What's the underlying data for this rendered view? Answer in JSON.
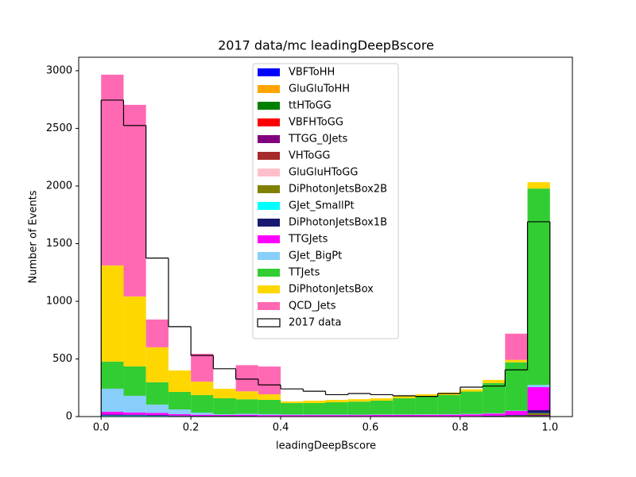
{
  "chart_data": {
    "type": "histogram",
    "title": "2017 data/mc leadingDeepBscore",
    "xlabel": "leadingDeepBscore",
    "ylabel": "Number of Events",
    "bins": [
      0,
      0.05,
      0.1,
      0.15,
      0.2,
      0.25,
      0.3,
      0.35,
      0.4,
      0.45,
      0.5,
      0.55,
      0.6,
      0.65,
      0.7,
      0.75,
      0.8,
      0.85,
      0.9,
      0.95,
      1
    ],
    "stacked": true,
    "series": [
      {
        "name": "VBFToHH",
        "color": "#0000ff",
        "values": [
          0,
          0,
          0,
          0,
          0,
          0,
          0,
          0,
          0,
          0,
          0,
          0,
          0,
          0,
          0,
          0,
          0,
          0,
          0,
          0
        ]
      },
      {
        "name": "GluGluToHH",
        "color": "#ffa500",
        "values": [
          0,
          0,
          0,
          0,
          0,
          0,
          0,
          0,
          0,
          0,
          0,
          0,
          0,
          0,
          0,
          0,
          0,
          0,
          0,
          1
        ]
      },
      {
        "name": "ttHToGG",
        "color": "#008000",
        "values": [
          0,
          0,
          0,
          0,
          0,
          0,
          0,
          0,
          0,
          0,
          0,
          0,
          0,
          0,
          0,
          0,
          0,
          0,
          1,
          5
        ]
      },
      {
        "name": "VBFHToGG",
        "color": "#ff0000",
        "values": [
          0,
          0,
          0,
          0,
          0,
          0,
          0,
          0,
          0,
          0,
          0,
          0,
          0,
          0,
          0,
          0,
          0,
          0,
          0,
          0
        ]
      },
      {
        "name": "TTGG_0Jets",
        "color": "#800080",
        "values": [
          0,
          0,
          0,
          0,
          0,
          0,
          0,
          0,
          0,
          0,
          0,
          0,
          0,
          0,
          0,
          0,
          0,
          1,
          3,
          8
        ]
      },
      {
        "name": "VHToGG",
        "color": "#a52a2a",
        "values": [
          0,
          0,
          0,
          0,
          0,
          0,
          0,
          0,
          0,
          0,
          0,
          0,
          0,
          0,
          0,
          0,
          0,
          0,
          0,
          0
        ]
      },
      {
        "name": "GluGluHToGG",
        "color": "#ffc0cb",
        "values": [
          1,
          1,
          1,
          0,
          0,
          0,
          0,
          0,
          0,
          0,
          0,
          0,
          0,
          0,
          0,
          0,
          0,
          0,
          0,
          0
        ]
      },
      {
        "name": "DiPhotonJetsBox2B",
        "color": "#808000",
        "values": [
          3,
          3,
          2,
          2,
          1,
          1,
          1,
          1,
          1,
          1,
          1,
          1,
          1,
          1,
          1,
          1,
          1,
          2,
          3,
          15
        ]
      },
      {
        "name": "GJet_SmallPt",
        "color": "#00ffff",
        "values": [
          5,
          5,
          4,
          3,
          2,
          2,
          2,
          1,
          1,
          1,
          1,
          1,
          1,
          1,
          1,
          1,
          1,
          1,
          1,
          1
        ]
      },
      {
        "name": "DiPhotonJetsBox1B",
        "color": "#191970",
        "values": [
          8,
          7,
          6,
          4,
          3,
          3,
          3,
          2,
          2,
          2,
          2,
          2,
          2,
          2,
          2,
          2,
          3,
          4,
          6,
          25
        ]
      },
      {
        "name": "TTGJets",
        "color": "#ff00ff",
        "values": [
          25,
          20,
          18,
          12,
          10,
          8,
          10,
          9,
          9,
          9,
          9,
          9,
          10,
          10,
          11,
          12,
          14,
          18,
          35,
          200
        ]
      },
      {
        "name": "GJet_BigPt",
        "color": "#87cefa",
        "values": [
          200,
          144,
          73,
          41,
          18,
          6,
          8,
          8,
          5,
          5,
          5,
          4,
          4,
          4,
          4,
          4,
          4,
          3,
          3,
          20
        ]
      },
      {
        "name": "TTJets",
        "color": "#32cd32",
        "values": [
          235,
          255,
          194,
          152,
          152,
          139,
          126,
          124,
          99,
          99,
          106,
          113,
          120,
          141,
          154,
          167,
          194,
          262,
          419,
          1703
        ]
      },
      {
        "name": "DiPhotonJetsBox",
        "color": "#ffd700",
        "values": [
          834,
          607,
          303,
          186,
          117,
          82,
          69,
          48,
          14,
          21,
          21,
          21,
          21,
          20,
          21,
          21,
          20,
          27,
          21,
          55
        ]
      },
      {
        "name": "QCD_Jets",
        "color": "#ff69b4",
        "values": [
          1655,
          1662,
          241,
          0,
          242,
          0,
          227,
          241,
          0,
          0,
          0,
          0,
          0,
          0,
          0,
          0,
          0,
          0,
          227,
          0
        ]
      }
    ],
    "data_series": {
      "name": "2017 data",
      "color": "#000000",
      "histtype": "step",
      "values": [
        2745,
        2525,
        1375,
        780,
        530,
        415,
        325,
        275,
        240,
        220,
        190,
        200,
        190,
        180,
        175,
        200,
        255,
        265,
        405,
        1690
      ]
    },
    "xlim": [
      -0.05,
      1.05
    ],
    "ylim": [
      0,
      3117
    ],
    "xticks": [
      {
        "value": 0,
        "label": "0.0"
      },
      0.2,
      0.4,
      0.6,
      0.8,
      {
        "value": 1,
        "label": "1.0"
      }
    ],
    "yticks": [
      0,
      500,
      1000,
      1500,
      2000,
      2500,
      3000
    ],
    "legend": "upper center"
  }
}
